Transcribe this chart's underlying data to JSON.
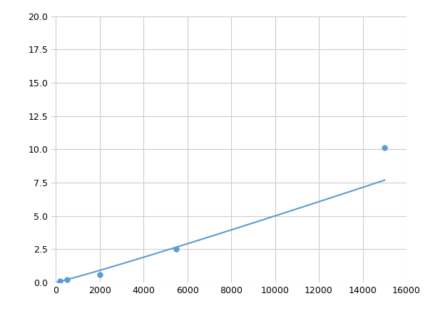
{
  "x": [
    200,
    500,
    2000,
    5500,
    15000
  ],
  "y": [
    0.1,
    0.2,
    0.6,
    2.5,
    10.1
  ],
  "line_color": "#5b9bd5",
  "marker_color": "#5b9bd5",
  "marker_size": 5,
  "line_width": 1.5,
  "xlim": [
    -200,
    16000
  ],
  "ylim": [
    0.0,
    20.0
  ],
  "xticks": [
    0,
    2000,
    4000,
    6000,
    8000,
    10000,
    12000,
    14000,
    16000
  ],
  "yticks": [
    0.0,
    2.5,
    5.0,
    7.5,
    10.0,
    12.5,
    15.0,
    17.5,
    20.0
  ],
  "grid_color": "#cccccc",
  "background_color": "#ffffff",
  "figure_facecolor": "#ffffff"
}
